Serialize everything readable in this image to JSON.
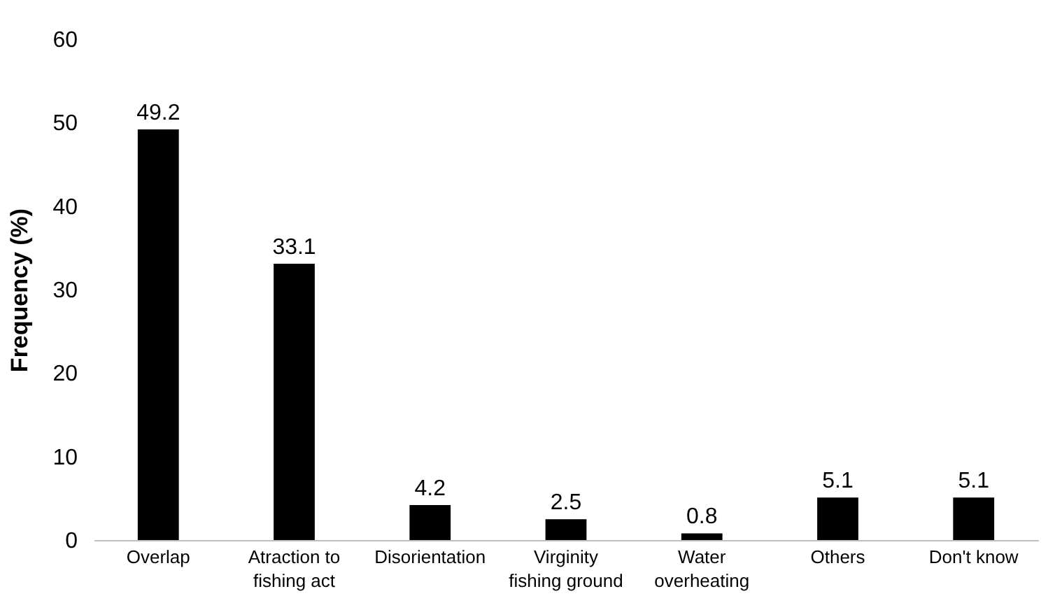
{
  "chart_data": {
    "type": "bar",
    "ylabel": "Frequency (%)",
    "categories": [
      "Overlap",
      "Atraction to fishing act",
      "Disorientation",
      "Virginity fishing ground",
      "Water overheating",
      "Others",
      "Don't know"
    ],
    "values": [
      49.2,
      33.1,
      4.2,
      2.5,
      0.8,
      5.1,
      5.1
    ],
    "color": "#000000",
    "ylim": [
      0,
      60
    ],
    "yticks": [
      0,
      10,
      20,
      30,
      40,
      50,
      60
    ],
    "grid": false,
    "data_labels": true
  }
}
